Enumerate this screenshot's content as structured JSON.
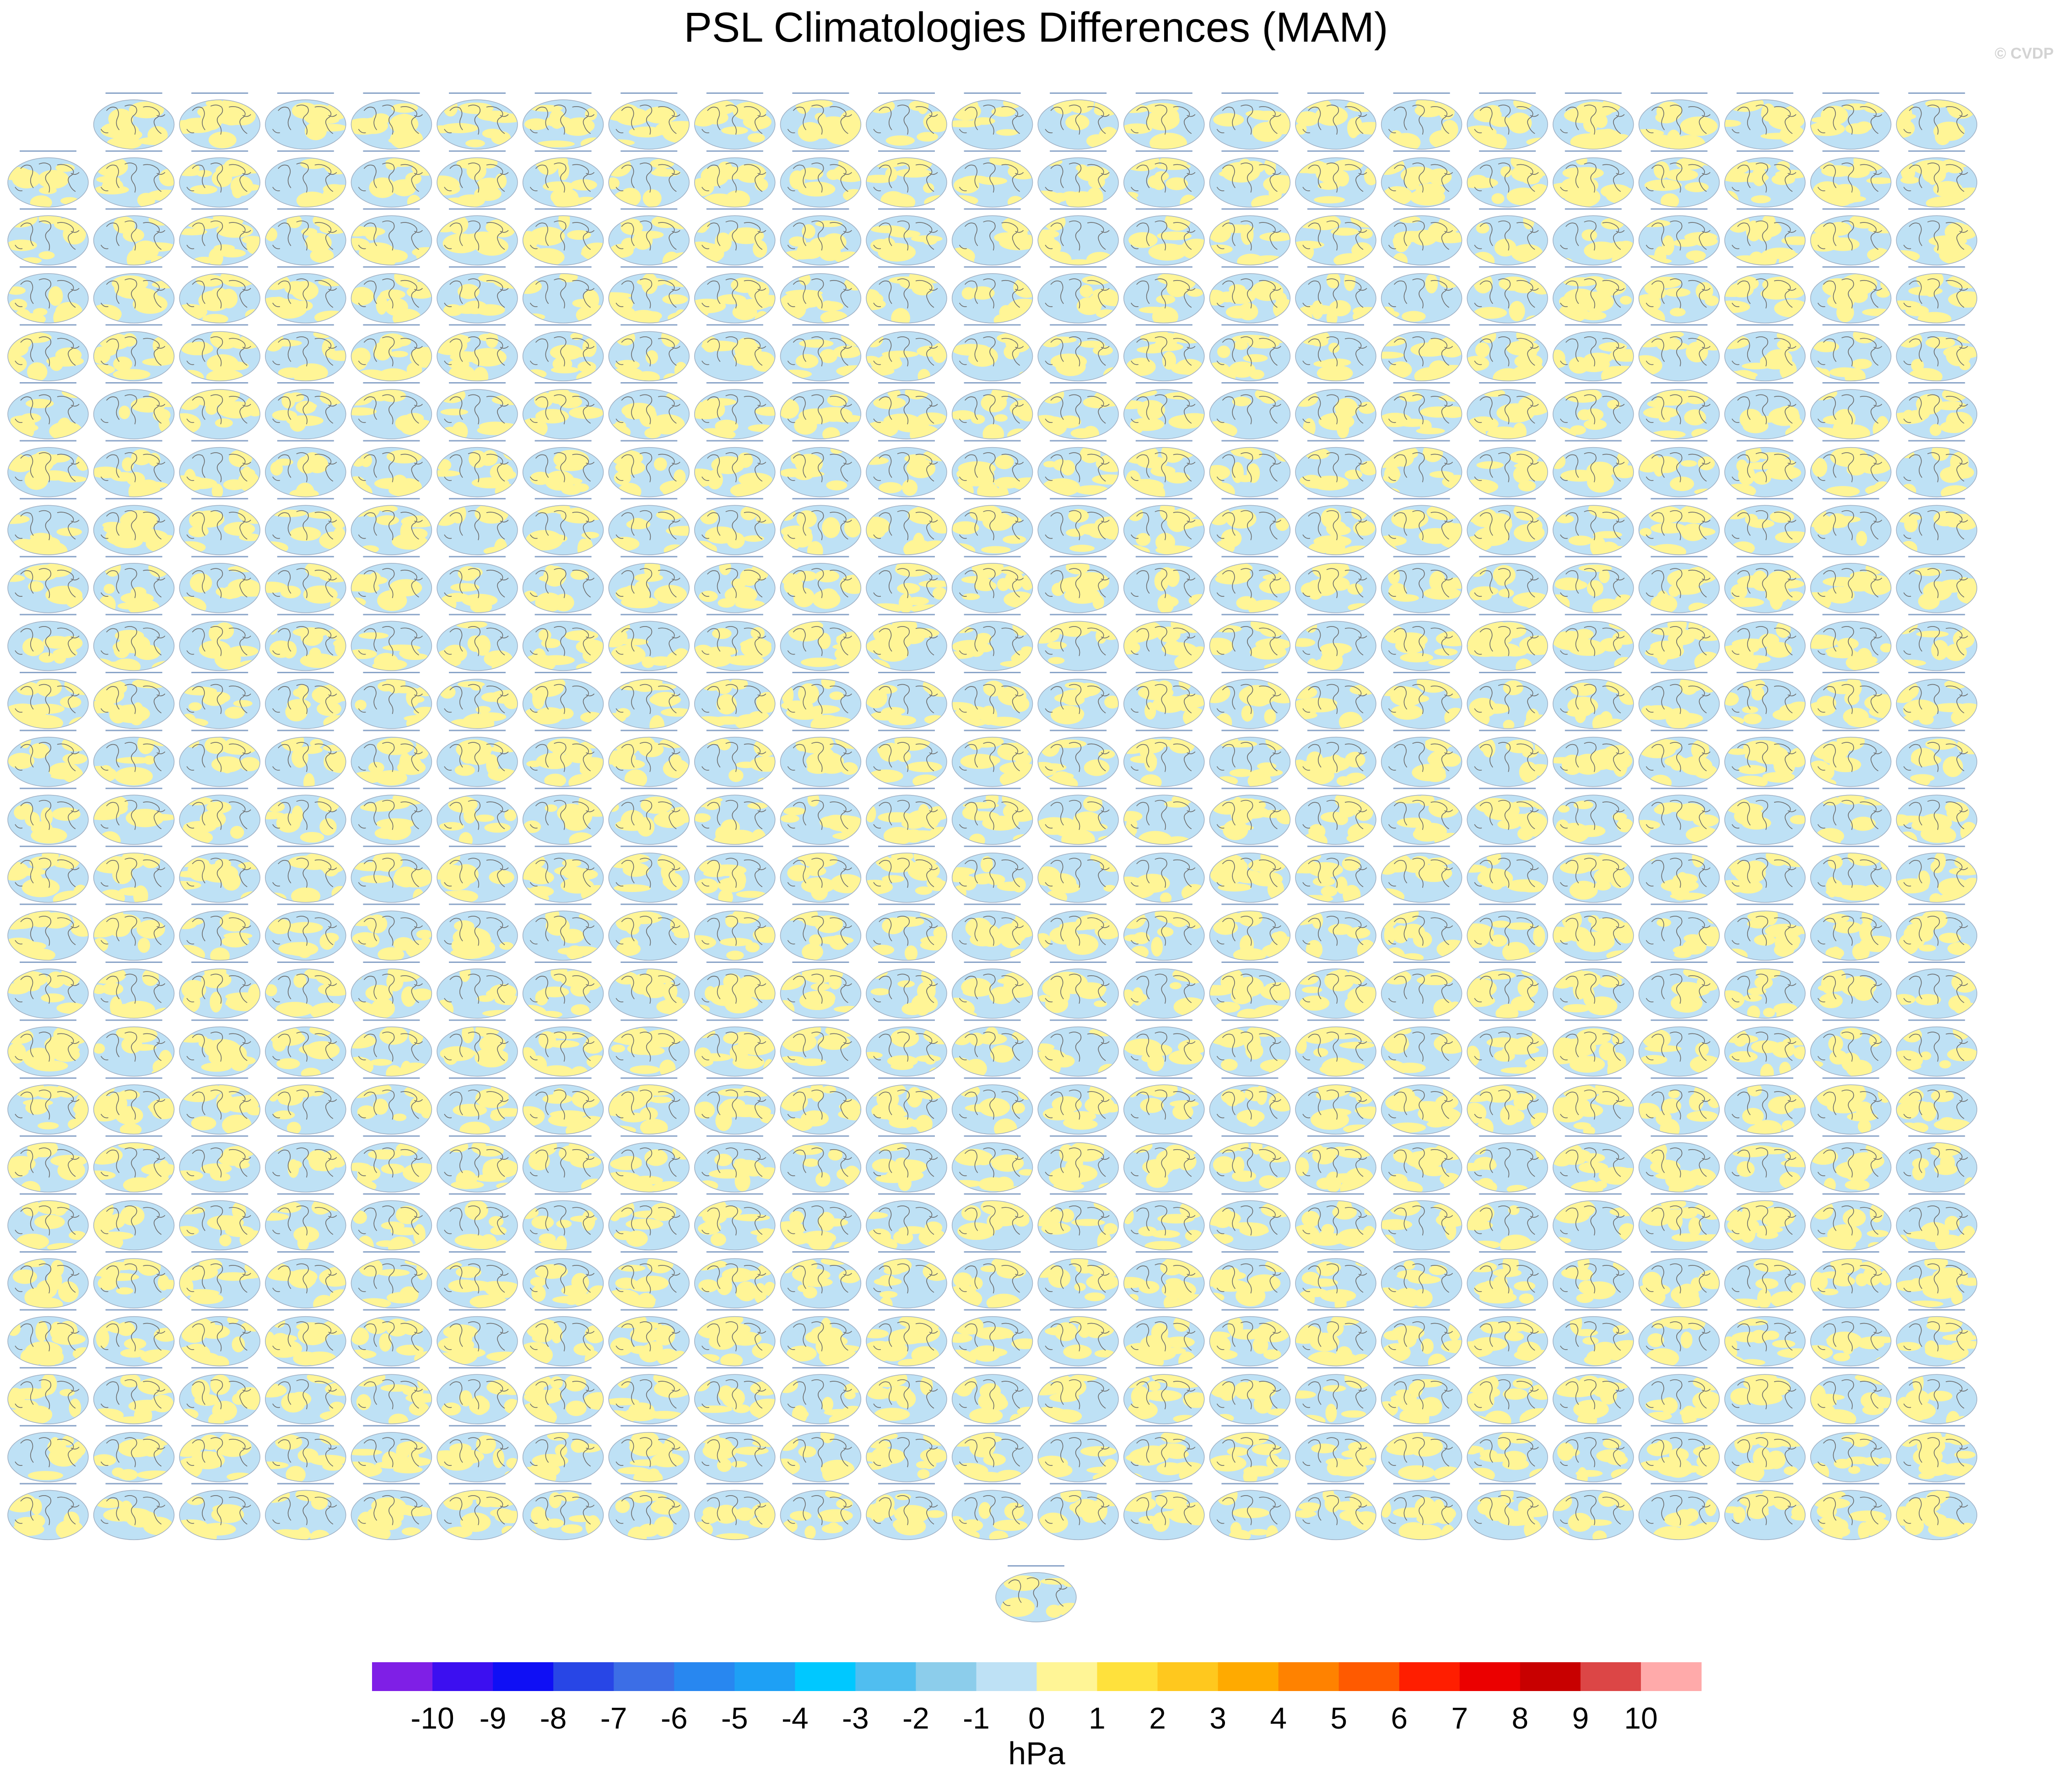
{
  "title": "PSL Climatologies Differences (MAM)",
  "watermark": "© CVDP",
  "chart_data": {
    "type": "heatmap",
    "title": "PSL Climatologies Differences (MAM)",
    "panel_grid": {
      "rows": 25,
      "columns": 23,
      "first_row_columns": 22,
      "extra_bottom_panels": 1,
      "total_panels": 575
    },
    "colorbar": {
      "unit": "hPa",
      "ticks": [
        "-10",
        "-9",
        "-8",
        "-7",
        "-6",
        "-5",
        "-4",
        "-3",
        "-2",
        "-1",
        "0",
        "1",
        "2",
        "3",
        "4",
        "5",
        "6",
        "7",
        "8",
        "9",
        "10"
      ],
      "colors": [
        "#7f1fe6",
        "#3c0ff0",
        "#0f0ff5",
        "#2846e6",
        "#3c6ee6",
        "#2887f0",
        "#1ea0f5",
        "#00c8ff",
        "#50bef0",
        "#8ccdeb",
        "#bee1f5",
        "#fff596",
        "#ffe13c",
        "#ffc81e",
        "#ffaa00",
        "#ff8200",
        "#ff5a00",
        "#ff1e00",
        "#eb0000",
        "#c80000",
        "#dc4646",
        "#ffaaaa"
      ]
    },
    "panel_field_colors": {
      "ocean_outline": "#9fb0c4",
      "negative_small": "#bee1f5",
      "positive_small": "#fff596",
      "coastline": "#6b6b6b"
    }
  }
}
